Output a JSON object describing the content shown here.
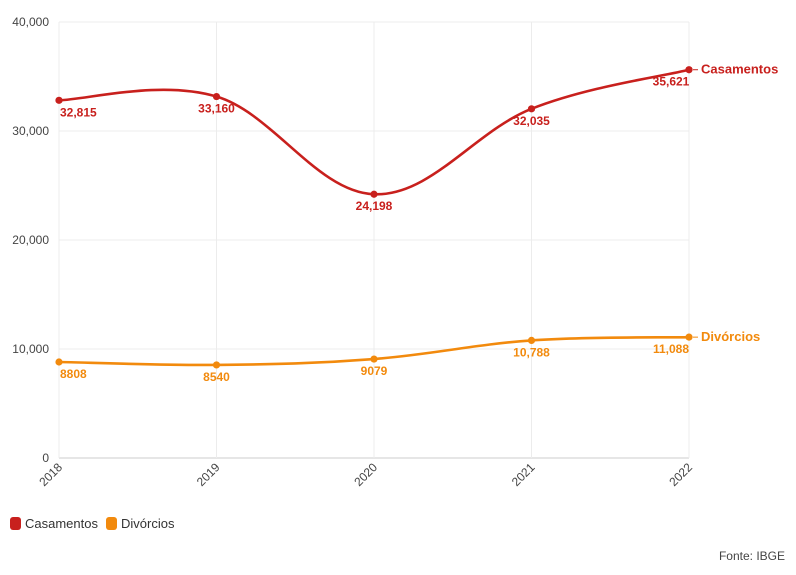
{
  "chart_data": {
    "type": "line",
    "categories": [
      "2018",
      "2019",
      "2020",
      "2021",
      "2022"
    ],
    "ylim": [
      0,
      40000
    ],
    "yticks": [
      0,
      10000,
      20000,
      30000,
      40000
    ],
    "ytick_labels": [
      "0",
      "10,000",
      "20,000",
      "30,000",
      "40,000"
    ],
    "grid": true,
    "series": [
      {
        "name": "Casamentos",
        "color": "#c8201d",
        "values": [
          32815,
          33160,
          24198,
          32035,
          35621
        ],
        "labels": [
          "32,815",
          "33,160",
          "24,198",
          "32,035",
          "35,621"
        ]
      },
      {
        "name": "Divórcios",
        "color": "#f28a0d",
        "values": [
          8808,
          8540,
          9079,
          10788,
          11088
        ],
        "labels": [
          "8808",
          "8540",
          "9079",
          "10,788",
          "11,088"
        ]
      }
    ],
    "legend": {
      "placement": "bottom-left",
      "items": [
        "Casamentos",
        "Divórcios"
      ]
    },
    "source": "Fonte: IBGE"
  }
}
